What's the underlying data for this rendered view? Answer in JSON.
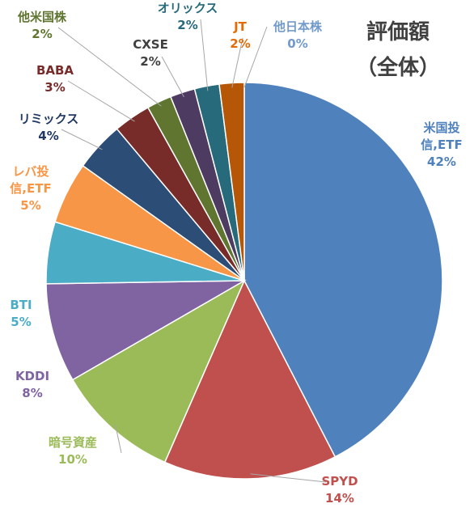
{
  "chart_data": {
    "type": "pie",
    "title": "評価額",
    "subtitle": "（全体）",
    "slices": [
      {
        "name": "米国投信,ETF",
        "label_lines": [
          "米国投",
          "信,ETF"
        ],
        "value": 42,
        "pct_label": "42%",
        "color": "#4F81BD"
      },
      {
        "name": "SPYD",
        "label_lines": [
          "SPYD"
        ],
        "value": 14,
        "pct_label": "14%",
        "color": "#C0504D"
      },
      {
        "name": "暗号資産",
        "label_lines": [
          "暗号資産"
        ],
        "value": 10,
        "pct_label": "10%",
        "color": "#9BBB59"
      },
      {
        "name": "KDDI",
        "label_lines": [
          "KDDI"
        ],
        "value": 8,
        "pct_label": "8%",
        "color": "#8064A2"
      },
      {
        "name": "BTI",
        "label_lines": [
          "BTI"
        ],
        "value": 5,
        "pct_label": "5%",
        "color": "#4BACC6"
      },
      {
        "name": "レバ投信,ETF",
        "label_lines": [
          "レバ投",
          "信,ETF"
        ],
        "value": 5,
        "pct_label": "5%",
        "color": "#F79646"
      },
      {
        "name": "リミックス",
        "label_lines": [
          "リミックス"
        ],
        "value": 4,
        "pct_label": "4%",
        "color": "#2C4D75"
      },
      {
        "name": "BABA",
        "label_lines": [
          "BABA"
        ],
        "value": 3,
        "pct_label": "3%",
        "color": "#772C2A"
      },
      {
        "name": "他米国株",
        "label_lines": [
          "他米国株"
        ],
        "value": 2,
        "pct_label": "2%",
        "color": "#5F7530"
      },
      {
        "name": "CXSE",
        "label_lines": [
          "CXSE"
        ],
        "value": 2,
        "pct_label": "2%",
        "color": "#4D3B62"
      },
      {
        "name": "オリックス",
        "label_lines": [
          "オリックス"
        ],
        "value": 2,
        "pct_label": "2%",
        "color": "#276A7C"
      },
      {
        "name": "JT",
        "label_lines": [
          "JT"
        ],
        "value": 2,
        "pct_label": "2%",
        "color": "#B65708"
      },
      {
        "name": "他日本株",
        "label_lines": [
          "他日本株"
        ],
        "value": 0,
        "pct_label": "0%",
        "color": "#729ACA"
      }
    ],
    "label_colors": [
      "#4F81BD",
      "#C0504D",
      "#9BBB59",
      "#8064A2",
      "#4BACC6",
      "#F79646",
      "#1F3864",
      "#772C2A",
      "#5F7530",
      "#404040",
      "#276A7C",
      "#E36C09",
      "#729ACA"
    ],
    "legend": "none"
  }
}
